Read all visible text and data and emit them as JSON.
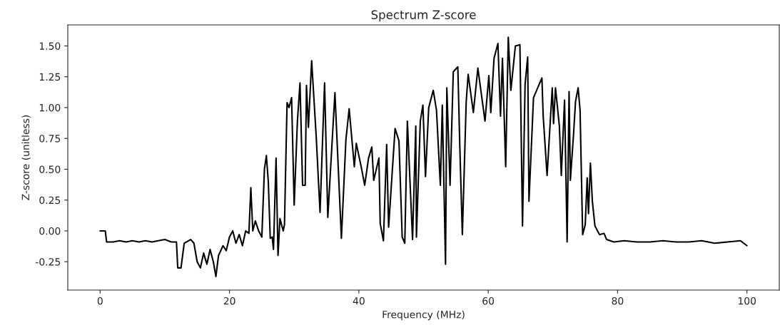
{
  "chart_data": {
    "type": "line",
    "title": "Spectrum Z-score",
    "xlabel": "Frequency (MHz)",
    "ylabel": "Z-score (unitless)",
    "xlim": [
      -5,
      105
    ],
    "ylim": [
      -0.48,
      1.67
    ],
    "xticks": [
      0,
      20,
      40,
      60,
      80,
      100
    ],
    "yticks": [
      -0.25,
      {
        "value": 0,
        "label": "0.00"
      },
      0.25,
      {
        "value": 0.5,
        "label": "0.50"
      },
      0.75,
      {
        "value": 1,
        "label": "1.00"
      },
      1.25,
      {
        "value": 1.5,
        "label": "1.50"
      }
    ],
    "grid": false,
    "marker": "none",
    "line_style": "solid",
    "series": [
      {
        "color": "#000000",
        "x": [
          0,
          0.8,
          1.0,
          2,
          3,
          4,
          5,
          6,
          7,
          8,
          9,
          10,
          11,
          11.8,
          12.0,
          12.5,
          13,
          14,
          14.5,
          15,
          15.5,
          16,
          16.5,
          17,
          17.5,
          17.9,
          18.3,
          19,
          19.5,
          20,
          20.5,
          21,
          21.5,
          22,
          22.5,
          23,
          23.3,
          23.6,
          24,
          24.5,
          25,
          25.4,
          25.7,
          26.0,
          26.3,
          26.6,
          26.8,
          27.2,
          27.5,
          27.8,
          28.3,
          28.5,
          28.9,
          29.2,
          29.6,
          30.0,
          30.5,
          30.9,
          31.3,
          31.7,
          31.9,
          32.2,
          32.7,
          33.4,
          34.0,
          34.7,
          35.2,
          36.3,
          37.3,
          38.0,
          38.5,
          39.3,
          39.6,
          40.4,
          40.9,
          41.5,
          42.0,
          42.3,
          43.1,
          43.3,
          43.8,
          44.3,
          44.6,
          45.6,
          46.2,
          46.7,
          47.1,
          47.5,
          48.3,
          48.8,
          48.9,
          49.5,
          49.9,
          50.3,
          50.8,
          51.5,
          52.0,
          52.6,
          52.9,
          53.4,
          53.6,
          54.1,
          54.6,
          55.3,
          55.6,
          56.0,
          56.6,
          56.9,
          57.7,
          58.4,
          59.5,
          60.1,
          60.4,
          60.9,
          61.5,
          61.9,
          62.2,
          62.7,
          63.1,
          63.5,
          64.2,
          64.9,
          65.3,
          65.7,
          66.1,
          66.3,
          67.0,
          68.3,
          68.5,
          69.1,
          69.9,
          70.1,
          70.4,
          71.0,
          71.3,
          71.8,
          72.2,
          72.5,
          72.7,
          73.2,
          73.5,
          73.9,
          74.2,
          74.6,
          75.0,
          75.3,
          75.5,
          75.8,
          76.1,
          76.5,
          77.2,
          77.9,
          78.3,
          79.4,
          81,
          83,
          85,
          87,
          89,
          91,
          93,
          95,
          97,
          99,
          100
        ],
        "values": [
          0,
          0,
          -0.09,
          -0.09,
          -0.08,
          -0.09,
          -0.08,
          -0.09,
          -0.08,
          -0.09,
          -0.08,
          -0.07,
          -0.09,
          -0.09,
          -0.3,
          -0.3,
          -0.1,
          -0.07,
          -0.1,
          -0.25,
          -0.3,
          -0.18,
          -0.27,
          -0.15,
          -0.25,
          -0.37,
          -0.2,
          -0.12,
          -0.16,
          -0.05,
          0.0,
          -0.1,
          -0.03,
          -0.12,
          0.0,
          -0.02,
          0.35,
          0.0,
          0.08,
          0.0,
          -0.05,
          0.5,
          0.61,
          0.4,
          -0.06,
          -0.05,
          -0.15,
          0.59,
          -0.2,
          0.1,
          0.0,
          0.05,
          1.04,
          1.0,
          1.08,
          0.21,
          0.89,
          1.2,
          0.37,
          0.37,
          1.18,
          0.84,
          1.38,
          0.77,
          0.15,
          1.2,
          0.11,
          1.12,
          -0.06,
          0.74,
          0.99,
          0.52,
          0.71,
          0.51,
          0.37,
          0.59,
          0.68,
          0.41,
          0.59,
          0.06,
          -0.08,
          0.7,
          0.03,
          0.83,
          0.73,
          -0.05,
          -0.1,
          0.89,
          -0.07,
          0.85,
          -0.05,
          0.89,
          1.02,
          0.44,
          1.0,
          1.14,
          0.98,
          0.37,
          1.02,
          -0.27,
          1.16,
          0.37,
          1.29,
          1.33,
          0.7,
          -0.03,
          1.05,
          1.27,
          0.96,
          1.32,
          0.89,
          1.26,
          0.96,
          1.4,
          1.52,
          0.93,
          1.4,
          0.52,
          1.57,
          1.14,
          1.5,
          1.51,
          0.04,
          1.19,
          1.41,
          0.24,
          1.08,
          1.24,
          0.93,
          0.45,
          1.16,
          0.87,
          1.16,
          0.85,
          0.45,
          1.06,
          -0.09,
          1.13,
          0.41,
          0.79,
          1.05,
          1.16,
          0.98,
          -0.03,
          0.05,
          0.43,
          0.14,
          0.55,
          0.24,
          0.04,
          -0.03,
          -0.02,
          -0.07,
          -0.09,
          -0.08,
          -0.09,
          -0.09,
          -0.08,
          -0.09,
          -0.09,
          -0.08,
          -0.1,
          -0.09,
          -0.08,
          -0.12
        ]
      }
    ]
  }
}
